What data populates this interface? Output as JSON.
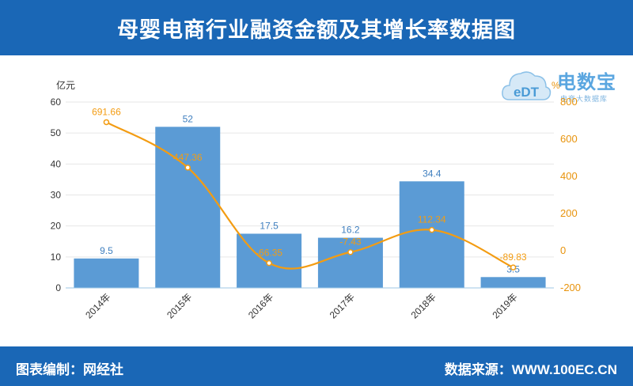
{
  "header": {
    "title": "母婴电商行业融资金额及其增长率数据图"
  },
  "footer": {
    "left": "图表编制：网经社",
    "right": "数据来源：WWW.100EC.CN"
  },
  "watermark": {
    "logo_text": "eDT",
    "name": "电数宝",
    "subtitle": "电商大数据库"
  },
  "colors": {
    "header_bg": "#1a67b6",
    "bar": "#5b9bd5",
    "line": "#f39c12",
    "bar_label": "#3f7fbf"
  },
  "chart_data": {
    "type": "bar+line",
    "categories": [
      "2014年",
      "2015年",
      "2016年",
      "2017年",
      "2018年",
      "2019年"
    ],
    "series": [
      {
        "type": "bar",
        "axis": "left",
        "values": [
          9.5,
          52,
          17.5,
          16.2,
          34.4,
          3.5
        ],
        "labels": [
          "9.5",
          "52",
          "17.5",
          "16.2",
          "34.4",
          "3.5"
        ]
      },
      {
        "type": "line",
        "axis": "right",
        "values": [
          691.66,
          447.36,
          -66.35,
          -7.43,
          112.34,
          -89.83
        ],
        "labels": [
          "691.66",
          "447.36",
          "-66.35",
          "-7.43",
          "112.34",
          "-89.83"
        ]
      }
    ],
    "y_left": {
      "unit": "亿元",
      "min": 0,
      "max": 60,
      "ticks": [
        "0",
        "10",
        "20",
        "30",
        "40",
        "50",
        "60"
      ]
    },
    "y_right": {
      "unit": "%",
      "min": -200,
      "max": 800,
      "ticks": [
        "-200",
        "0",
        "200",
        "400",
        "600",
        "800"
      ]
    },
    "grid": true
  }
}
